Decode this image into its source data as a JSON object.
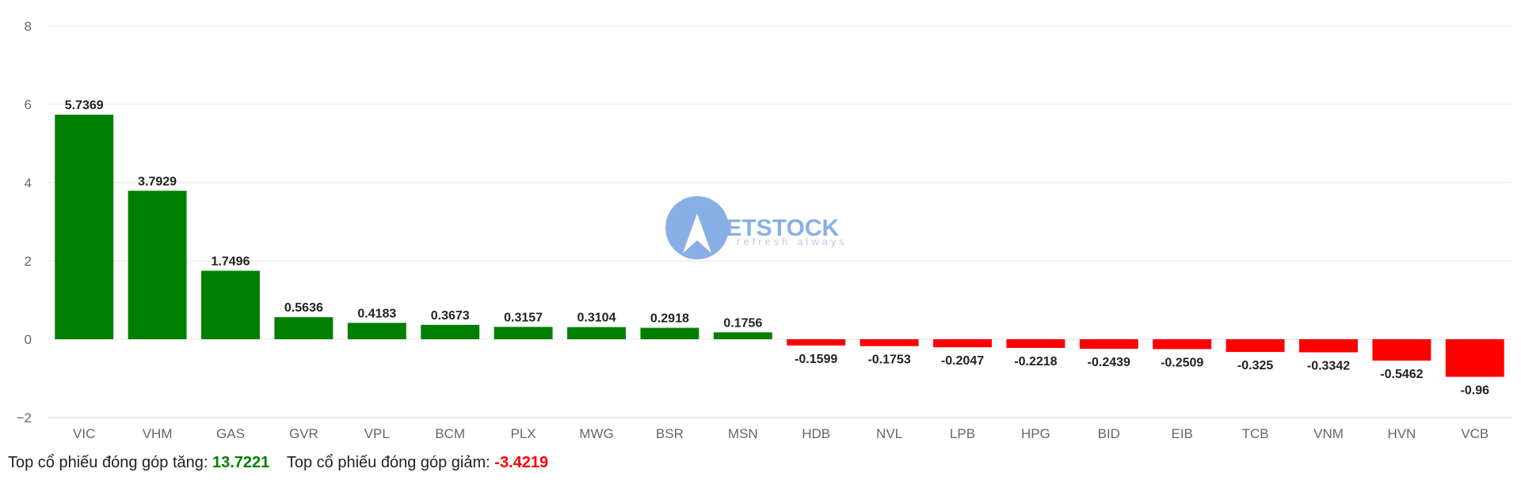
{
  "watermark": {
    "brand": "VIETSTOCK",
    "tagline": "refresh always"
  },
  "summary": {
    "up_label": "Top cổ phiếu đóng góp tăng:",
    "up_value": "13.7221",
    "down_label": "Top cổ phiếu đóng góp giảm:",
    "down_value": "-3.4219"
  },
  "colors": {
    "positive": "#008000",
    "negative": "#ff0000"
  },
  "chart_data": {
    "type": "bar",
    "title": "",
    "xlabel": "",
    "ylabel": "",
    "ylim": [
      -2,
      8
    ],
    "yticks": [
      -2,
      0,
      2,
      4,
      6,
      8
    ],
    "ytick_labels": [
      "−2",
      "0",
      "2",
      "4",
      "6",
      "8"
    ],
    "grid": true,
    "legend": "none",
    "categories": [
      "VIC",
      "VHM",
      "GAS",
      "GVR",
      "VPL",
      "BCM",
      "PLX",
      "MWG",
      "BSR",
      "MSN",
      "HDB",
      "NVL",
      "LPB",
      "HPG",
      "BID",
      "EIB",
      "TCB",
      "VNM",
      "HVN",
      "VCB"
    ],
    "values": [
      5.7369,
      3.7929,
      1.7496,
      0.5636,
      0.4183,
      0.3673,
      0.3157,
      0.3104,
      0.2918,
      0.1756,
      -0.1599,
      -0.1753,
      -0.2047,
      -0.2218,
      -0.2439,
      -0.2509,
      -0.325,
      -0.3342,
      -0.5462,
      -0.96
    ],
    "value_labels": [
      "5.7369",
      "3.7929",
      "1.7496",
      "0.5636",
      "0.4183",
      "0.3673",
      "0.3157",
      "0.3104",
      "0.2918",
      "0.1756",
      "-0.1599",
      "-0.1753",
      "-0.2047",
      "-0.2218",
      "-0.2439",
      "-0.2509",
      "-0.325",
      "-0.3342",
      "-0.5462",
      "-0.96"
    ]
  }
}
